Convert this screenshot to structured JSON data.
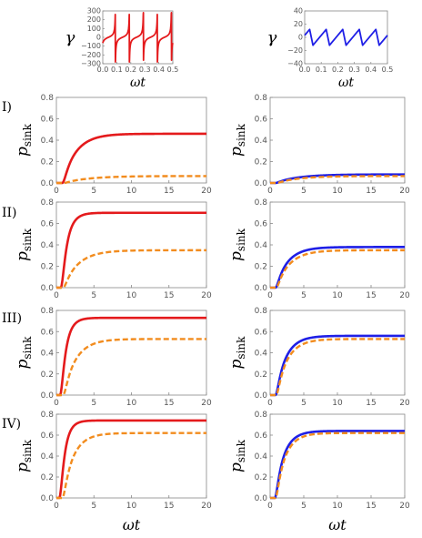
{
  "chart_data": [
    {
      "panel": "top-left",
      "type": "line",
      "ylabel": "γ",
      "xlabel": "ωt",
      "xlim": [
        0,
        0.5
      ],
      "ylim": [
        -300,
        300
      ],
      "xticks": [
        "0.0",
        "0.1",
        "0.2",
        "0.3",
        "0.4",
        "0.5"
      ],
      "yticks": [
        "300",
        "200",
        "100",
        "0",
        "−100",
        "−200",
        "−300"
      ],
      "series": [
        {
          "color": "#e41a1c",
          "style": "solid",
          "kind": "spiky",
          "period": 0.1,
          "spikes_at": [
            0.04,
            0.14,
            0.24,
            0.34,
            0.44
          ],
          "peak": 280
        }
      ]
    },
    {
      "panel": "top-right",
      "type": "line",
      "ylabel": "γ",
      "xlabel": "ωt",
      "xlim": [
        0,
        0.5
      ],
      "ylim": [
        -40,
        40
      ],
      "xticks": [
        "0.0",
        "0.1",
        "0.2",
        "0.3",
        "0.4",
        "0.5"
      ],
      "yticks": [
        "40",
        "20",
        "0",
        "−20",
        "−40"
      ],
      "series": [
        {
          "color": "#1f1fe6",
          "style": "solid",
          "kind": "sawtooth",
          "period": 0.1,
          "min": -12,
          "max": 12,
          "start_phase": 0.5
        }
      ]
    },
    {
      "row": "I)",
      "panel": "left",
      "type": "line",
      "ylabel": "p_sink",
      "xlim": [
        0,
        20
      ],
      "ylim": [
        0,
        0.8
      ],
      "xticks": [
        "0",
        "5",
        "10",
        "15",
        "20"
      ],
      "yticks": [
        "0.0",
        "0.2",
        "0.4",
        "0.6",
        "0.8"
      ],
      "series": [
        {
          "color": "#e41a1c",
          "style": "solid",
          "final": 0.46,
          "rate": 0.55,
          "delay": 0.8
        },
        {
          "color": "#f28c1e",
          "style": "dashed",
          "final": 0.065,
          "rate": 0.3,
          "delay": 1.0
        }
      ]
    },
    {
      "row": "I)",
      "panel": "right",
      "type": "line",
      "ylabel": "p_sink",
      "xlim": [
        0,
        20
      ],
      "ylim": [
        0,
        0.8
      ],
      "xticks": [
        "0",
        "5",
        "10",
        "15",
        "20"
      ],
      "yticks": [
        "0.0",
        "0.2",
        "0.4",
        "0.6",
        "0.8"
      ],
      "series": [
        {
          "color": "#1f1fe6",
          "style": "solid",
          "final": 0.08,
          "rate": 0.3,
          "delay": 0.8
        },
        {
          "color": "#f28c1e",
          "style": "dashed",
          "final": 0.065,
          "rate": 0.3,
          "delay": 1.0
        }
      ]
    },
    {
      "row": "II)",
      "panel": "left",
      "type": "line",
      "ylabel": "p_sink",
      "xlim": [
        0,
        20
      ],
      "ylim": [
        0,
        0.8
      ],
      "xticks": [
        "0",
        "5",
        "10",
        "15",
        "20"
      ],
      "yticks": [
        "0.0",
        "0.2",
        "0.4",
        "0.6",
        "0.8"
      ],
      "series": [
        {
          "color": "#e41a1c",
          "style": "solid",
          "final": 0.7,
          "rate": 1.2,
          "delay": 0.6
        },
        {
          "color": "#f28c1e",
          "style": "dashed",
          "final": 0.35,
          "rate": 0.5,
          "delay": 0.9
        }
      ]
    },
    {
      "row": "II)",
      "panel": "right",
      "type": "line",
      "ylabel": "p_sink",
      "xlim": [
        0,
        20
      ],
      "ylim": [
        0,
        0.8
      ],
      "xticks": [
        "0",
        "5",
        "10",
        "15",
        "20"
      ],
      "yticks": [
        "0.0",
        "0.2",
        "0.4",
        "0.6",
        "0.8"
      ],
      "series": [
        {
          "color": "#1f1fe6",
          "style": "solid",
          "final": 0.38,
          "rate": 0.55,
          "delay": 0.8
        },
        {
          "color": "#f28c1e",
          "style": "dashed",
          "final": 0.35,
          "rate": 0.5,
          "delay": 0.9
        }
      ]
    },
    {
      "row": "III)",
      "panel": "left",
      "type": "line",
      "ylabel": "p_sink",
      "xlim": [
        0,
        20
      ],
      "ylim": [
        0,
        0.8
      ],
      "xticks": [
        "0",
        "5",
        "10",
        "15",
        "20"
      ],
      "yticks": [
        "0.0",
        "0.2",
        "0.4",
        "0.6",
        "0.8"
      ],
      "series": [
        {
          "color": "#e41a1c",
          "style": "solid",
          "final": 0.73,
          "rate": 1.3,
          "delay": 0.5
        },
        {
          "color": "#f28c1e",
          "style": "dashed",
          "final": 0.53,
          "rate": 0.6,
          "delay": 0.9
        }
      ]
    },
    {
      "row": "III)",
      "panel": "right",
      "type": "line",
      "ylabel": "p_sink",
      "xlim": [
        0,
        20
      ],
      "ylim": [
        0,
        0.8
      ],
      "xticks": [
        "0",
        "5",
        "10",
        "15",
        "20"
      ],
      "yticks": [
        "0.0",
        "0.2",
        "0.4",
        "0.6",
        "0.8"
      ],
      "series": [
        {
          "color": "#1f1fe6",
          "style": "solid",
          "final": 0.56,
          "rate": 0.65,
          "delay": 0.8
        },
        {
          "color": "#f28c1e",
          "style": "dashed",
          "final": 0.53,
          "rate": 0.6,
          "delay": 0.9
        }
      ]
    },
    {
      "row": "IV)",
      "panel": "left",
      "type": "line",
      "ylabel": "p_sink",
      "xlim": [
        0,
        20
      ],
      "ylim": [
        0,
        0.8
      ],
      "xticks": [
        "0",
        "5",
        "10",
        "15",
        "20"
      ],
      "yticks": [
        "0.0",
        "0.2",
        "0.4",
        "0.6",
        "0.8"
      ],
      "series": [
        {
          "color": "#e41a1c",
          "style": "solid",
          "final": 0.74,
          "rate": 1.4,
          "delay": 0.4
        },
        {
          "color": "#f28c1e",
          "style": "dashed",
          "final": 0.62,
          "rate": 0.7,
          "delay": 0.8
        }
      ]
    },
    {
      "row": "IV)",
      "panel": "right",
      "type": "line",
      "ylabel": "p_sink",
      "xlim": [
        0,
        20
      ],
      "ylim": [
        0,
        0.8
      ],
      "xticks": [
        "0",
        "5",
        "10",
        "15",
        "20"
      ],
      "yticks": [
        "0.0",
        "0.2",
        "0.4",
        "0.6",
        "0.8"
      ],
      "series": [
        {
          "color": "#1f1fe6",
          "style": "solid",
          "final": 0.64,
          "rate": 0.75,
          "delay": 0.7
        },
        {
          "color": "#f28c1e",
          "style": "dashed",
          "final": 0.62,
          "rate": 0.7,
          "delay": 0.8
        }
      ]
    }
  ],
  "labels": {
    "rows": [
      "I)",
      "II)",
      "III)",
      "IV)"
    ],
    "xlabel_bottom": "ωt",
    "ylabel_main": "p",
    "ylabel_sub": "sink",
    "ylabel_top": "γ",
    "xlabel_top": "ωt"
  }
}
